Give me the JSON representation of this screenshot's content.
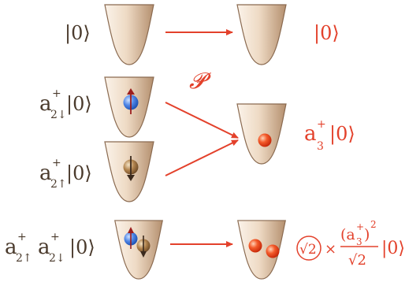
{
  "colors": {
    "well_light": "#f7ece0",
    "well_dark": "#b48f6e",
    "well_outline": "#8a6a50",
    "arrow": "#e3412b",
    "dark_label": "#4a3a2c",
    "red_label": "#e3412b",
    "spin_down_particle": "#2f6fd8",
    "spin_up_particle": "#a77a45",
    "output_particle": "#ee3a1e",
    "spin_arrow_down": "#9c1e1e",
    "spin_arrow_up": "#3b2a1d"
  },
  "rows": {
    "vacuum": {
      "left_ket": "|0⟩",
      "right_ket": "|0⟩"
    },
    "spin_down": {
      "op": "a",
      "dagger": "+",
      "sub": "2↓",
      "ket": "|0⟩"
    },
    "spin_up": {
      "op": "a",
      "dagger": "+",
      "sub": "2↑",
      "ket": "|0⟩"
    },
    "two_particle": {
      "op1": "a",
      "dagger1": "+",
      "sub1": "2↑",
      "op2": "a",
      "dagger2": "+",
      "sub2": "2↓",
      "ket": "|0⟩"
    }
  },
  "center": {
    "projection_symbol": "𝓟",
    "op": "a",
    "dagger": "+",
    "sub": "3",
    "ket": "|0⟩"
  },
  "result": {
    "sqrt2_circled": "√2",
    "times": "×",
    "num_op": "(a",
    "num_sub": "3",
    "num_dagger": "+",
    "num_close": ")",
    "num_power": "2",
    "den": "√2",
    "ket": "|0⟩"
  }
}
